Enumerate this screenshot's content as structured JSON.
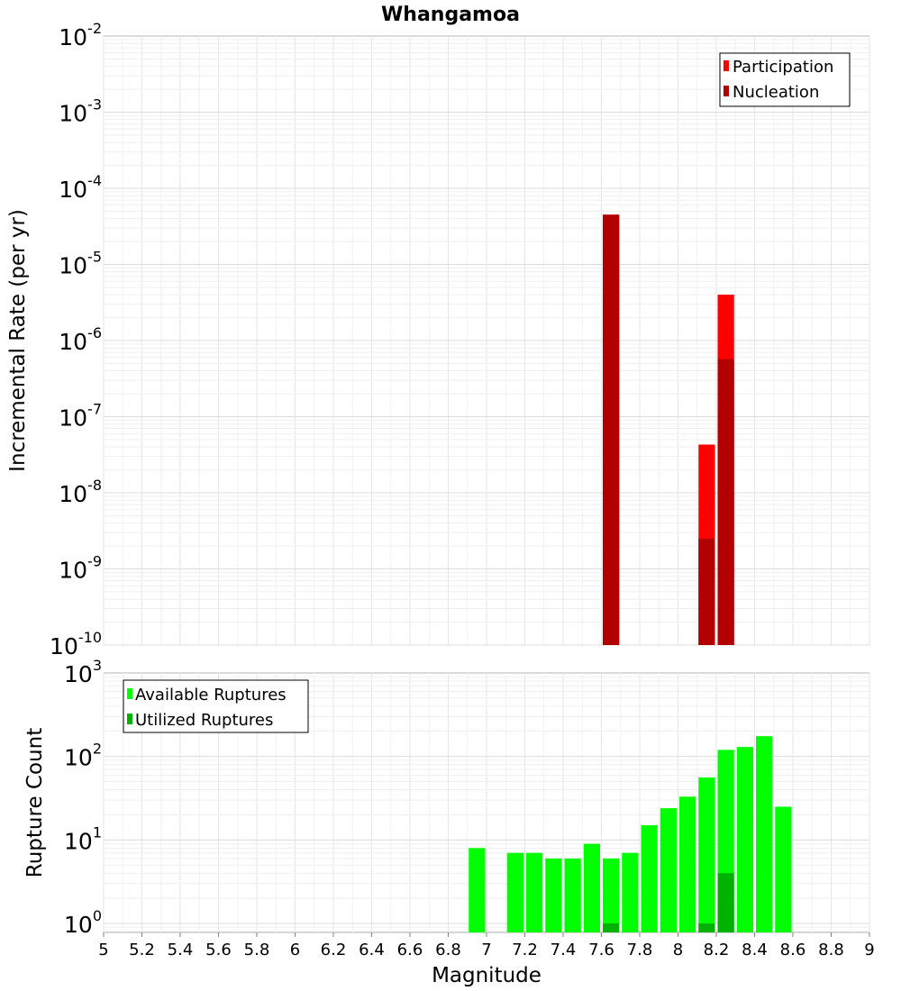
{
  "chart_data": [
    {
      "type": "bar",
      "title": "Whangamoa",
      "xlabel": "",
      "ylabel": "Incremental Rate (per yr)",
      "yscale": "log",
      "ylim": [
        1e-10,
        0.01
      ],
      "xlim": [
        5,
        9
      ],
      "ytick_labels": [
        {
          "base": "10",
          "exp": "-10",
          "value": 1e-10
        },
        {
          "base": "10",
          "exp": "-9",
          "value": 1e-09
        },
        {
          "base": "10",
          "exp": "-8",
          "value": 1e-08
        },
        {
          "base": "10",
          "exp": "-7",
          "value": 1e-07
        },
        {
          "base": "10",
          "exp": "-6",
          "value": 1e-06
        },
        {
          "base": "10",
          "exp": "-5",
          "value": 1e-05
        },
        {
          "base": "10",
          "exp": "-4",
          "value": 0.0001
        },
        {
          "base": "10",
          "exp": "-3",
          "value": 0.001
        },
        {
          "base": "10",
          "exp": "-2",
          "value": 0.01
        }
      ],
      "grid": true,
      "legend_position": "top-right",
      "series": [
        {
          "name": "Participation",
          "color": "#ff0000",
          "x": [
            7.65,
            8.15,
            8.25
          ],
          "values": [
            4.5e-05,
            4.3e-08,
            4e-06
          ]
        },
        {
          "name": "Nucleation",
          "color": "#b20000",
          "x": [
            7.65,
            8.15,
            8.25
          ],
          "values": [
            4.5e-05,
            2.5e-09,
            5.7e-07
          ]
        }
      ]
    },
    {
      "type": "bar",
      "xlabel": "Magnitude",
      "ylabel": "Rupture Count",
      "yscale": "log",
      "ylim": [
        0.78,
        1000
      ],
      "xlim": [
        5,
        9
      ],
      "xtick_labels": [
        "5",
        "5.2",
        "5.4",
        "5.6",
        "5.8",
        "6",
        "6.2",
        "6.4",
        "6.6",
        "6.8",
        "7",
        "7.2",
        "7.4",
        "7.6",
        "7.8",
        "8",
        "8.2",
        "8.4",
        "8.6",
        "8.8",
        "9"
      ],
      "ytick_labels": [
        {
          "base": "10",
          "exp": "0",
          "value": 1
        },
        {
          "base": "10",
          "exp": "1",
          "value": 10
        },
        {
          "base": "10",
          "exp": "2",
          "value": 100
        },
        {
          "base": "10",
          "exp": "3",
          "value": 1000
        }
      ],
      "grid": true,
      "legend_position": "top-left",
      "series": [
        {
          "name": "Available Ruptures",
          "color": "#00ff00",
          "x": [
            6.95,
            7.15,
            7.25,
            7.35,
            7.45,
            7.55,
            7.65,
            7.75,
            7.85,
            7.95,
            8.05,
            8.15,
            8.25,
            8.35,
            8.45,
            8.55
          ],
          "values": [
            8,
            7,
            7,
            6,
            6,
            9,
            6,
            7,
            15,
            24,
            33,
            56,
            120,
            130,
            175,
            25
          ]
        },
        {
          "name": "Utilized Ruptures",
          "color": "#00b200",
          "x": [
            7.65,
            8.15,
            8.25
          ],
          "values": [
            1,
            1,
            4
          ]
        }
      ]
    }
  ]
}
